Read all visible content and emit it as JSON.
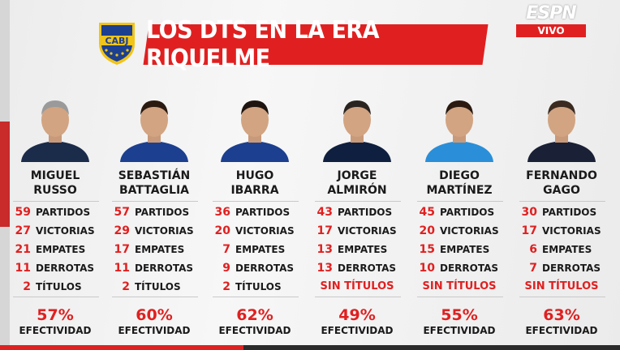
{
  "header": {
    "title": "LOS DTS EN LA ERA RIQUELME",
    "crest_text": "CABJ",
    "broadcaster": "ESPN",
    "live_label": "VIVO"
  },
  "colors": {
    "accent_red": "#e02020",
    "crest_blue": "#1c3f8f",
    "crest_gold": "#f0c419"
  },
  "coaches": [
    {
      "first": "MIGUEL",
      "last": "RUSSO",
      "stats": [
        {
          "num": "59",
          "label": "PARTIDOS"
        },
        {
          "num": "27",
          "label": "VICTORIAS"
        },
        {
          "num": "21",
          "label": "EMPATES"
        },
        {
          "num": "11",
          "label": "DERROTAS"
        },
        {
          "num": "2",
          "label": "TÍTULOS"
        }
      ],
      "pct": "57%",
      "eff_label": "EFECTIVIDAD"
    },
    {
      "first": "SEBASTIÁN",
      "last": "BATTAGLIA",
      "stats": [
        {
          "num": "57",
          "label": "PARTIDOS"
        },
        {
          "num": "29",
          "label": "VICTORIAS"
        },
        {
          "num": "17",
          "label": "EMPATES"
        },
        {
          "num": "11",
          "label": "DERROTAS"
        },
        {
          "num": "2",
          "label": "TÍTULOS"
        }
      ],
      "pct": "60%",
      "eff_label": "EFECTIVIDAD"
    },
    {
      "first": "HUGO",
      "last": "IBARRA",
      "stats": [
        {
          "num": "36",
          "label": "PARTIDOS"
        },
        {
          "num": "20",
          "label": "VICTORIAS"
        },
        {
          "num": "7",
          "label": "EMPATES"
        },
        {
          "num": "9",
          "label": "DERROTAS"
        },
        {
          "num": "2",
          "label": "TÍTULOS"
        }
      ],
      "pct": "62%",
      "eff_label": "EFECTIVIDAD"
    },
    {
      "first": "JORGE",
      "last": "ALMIRÓN",
      "stats": [
        {
          "num": "43",
          "label": "PARTIDOS"
        },
        {
          "num": "17",
          "label": "VICTORIAS"
        },
        {
          "num": "13",
          "label": "EMPATES"
        },
        {
          "num": "13",
          "label": "DERROTAS"
        }
      ],
      "titles_note": "SIN TÍTULOS",
      "pct": "49%",
      "eff_label": "EFECTIVIDAD"
    },
    {
      "first": "DIEGO",
      "last": "MARTÍNEZ",
      "stats": [
        {
          "num": "45",
          "label": "PARTIDOS"
        },
        {
          "num": "20",
          "label": "VICTORIAS"
        },
        {
          "num": "15",
          "label": "EMPATES"
        },
        {
          "num": "10",
          "label": "DERROTAS"
        }
      ],
      "titles_note": "SIN TÍTULOS",
      "pct": "55%",
      "eff_label": "EFECTIVIDAD"
    },
    {
      "first": "FERNANDO",
      "last": "GAGO",
      "stats": [
        {
          "num": "30",
          "label": "PARTIDOS"
        },
        {
          "num": "17",
          "label": "VICTORIAS"
        },
        {
          "num": "6",
          "label": "EMPATES"
        },
        {
          "num": "7",
          "label": "DERROTAS"
        }
      ],
      "titles_note": "SIN TÍTULOS",
      "pct": "63%",
      "eff_label": "EFECTIVIDAD"
    }
  ]
}
